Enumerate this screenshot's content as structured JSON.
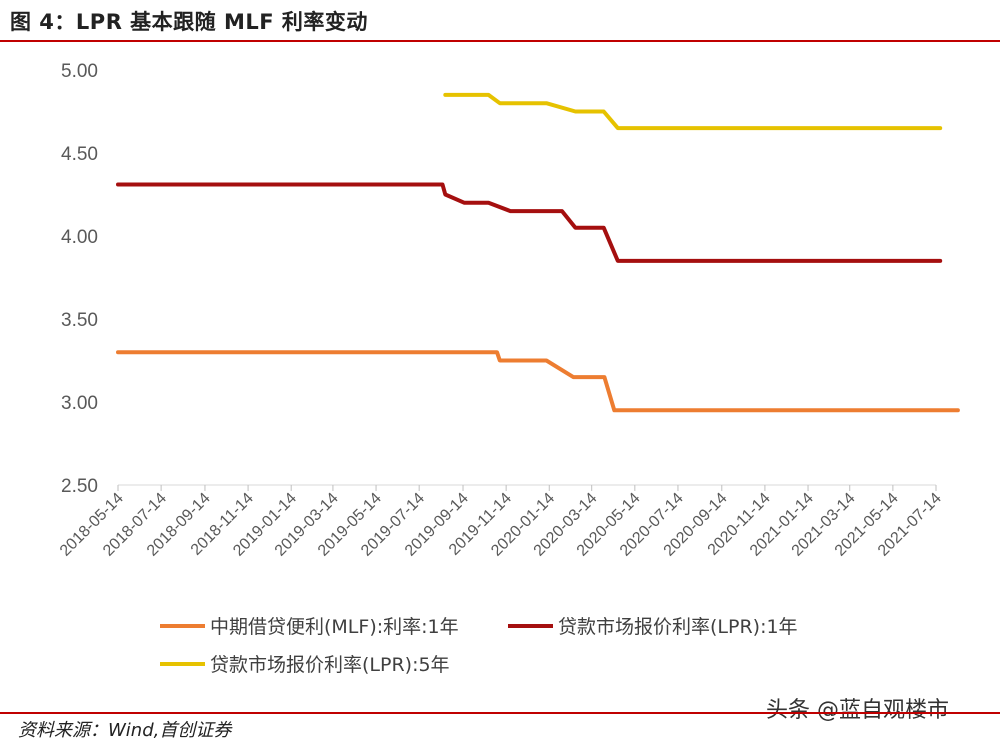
{
  "header": {
    "title": "图 4：LPR 基本跟随 MLF 利率变动"
  },
  "footer": {
    "source": "资料来源：Wind,首创证券",
    "watermark": "头条 @蓝自观楼市"
  },
  "chart_data": {
    "type": "line",
    "title": "",
    "xlabel": "",
    "ylabel": "",
    "ylim": [
      2.5,
      5.0
    ],
    "y_ticks": [
      "2.50",
      "3.00",
      "3.50",
      "4.00",
      "4.50",
      "5.00"
    ],
    "x_tick_labels": [
      "2018-05-14",
      "2018-07-14",
      "2018-09-14",
      "2018-11-14",
      "2019-01-14",
      "2019-03-14",
      "2019-05-14",
      "2019-07-14",
      "2019-09-14",
      "2019-11-14",
      "2020-01-14",
      "2020-03-14",
      "2020-05-14",
      "2020-07-14",
      "2020-09-14",
      "2020-11-14",
      "2021-01-14",
      "2021-03-14",
      "2021-05-14",
      "2021-07-14"
    ],
    "x_range": [
      "2018-05-14",
      "2021-07-14"
    ],
    "legend_position": "bottom",
    "series": [
      {
        "name": "中期借贷便利(MLF):利率:1年",
        "color": "#ED7D31",
        "points": [
          [
            "2018-05-14",
            3.3
          ],
          [
            "2019-11-01",
            3.3
          ],
          [
            "2019-11-05",
            3.25
          ],
          [
            "2020-01-10",
            3.25
          ],
          [
            "2020-02-17",
            3.15
          ],
          [
            "2020-04-01",
            3.15
          ],
          [
            "2020-04-15",
            2.95
          ],
          [
            "2021-08-14",
            2.95
          ]
        ]
      },
      {
        "name": "贷款市场报价利率(LPR):1年",
        "color": "#A50F0F",
        "points": [
          [
            "2018-05-14",
            4.31
          ],
          [
            "2019-08-16",
            4.31
          ],
          [
            "2019-08-20",
            4.25
          ],
          [
            "2019-09-16",
            4.2
          ],
          [
            "2019-10-20",
            4.2
          ],
          [
            "2019-11-20",
            4.15
          ],
          [
            "2020-02-01",
            4.15
          ],
          [
            "2020-02-20",
            4.05
          ],
          [
            "2020-03-31",
            4.05
          ],
          [
            "2020-04-20",
            3.85
          ],
          [
            "2021-07-20",
            3.85
          ]
        ]
      },
      {
        "name": "贷款市场报价利率(LPR):5年",
        "color": "#E6C200",
        "points": [
          [
            "2019-08-20",
            4.85
          ],
          [
            "2019-10-20",
            4.85
          ],
          [
            "2019-11-05",
            4.8
          ],
          [
            "2020-01-10",
            4.8
          ],
          [
            "2020-02-20",
            4.75
          ],
          [
            "2020-03-31",
            4.75
          ],
          [
            "2020-04-20",
            4.65
          ],
          [
            "2021-07-20",
            4.65
          ]
        ]
      }
    ]
  }
}
